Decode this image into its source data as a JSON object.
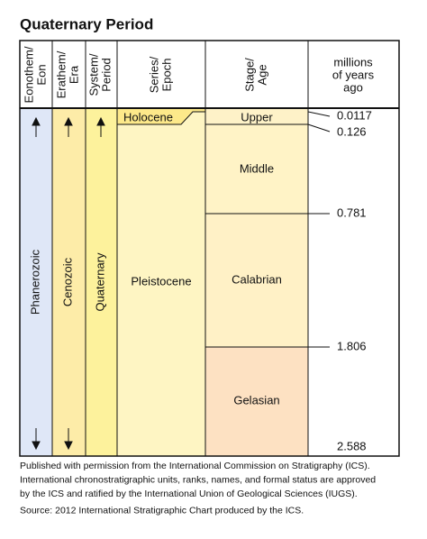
{
  "title": "Quaternary Period",
  "headers": [
    [
      "Eonothem/",
      "Eon"
    ],
    [
      "Erathem/",
      "Era"
    ],
    [
      "System/",
      "Period"
    ],
    [
      "Series/",
      "Epoch"
    ],
    [
      "Stage/",
      "Age"
    ],
    [
      "millions",
      "of years",
      "ago"
    ]
  ],
  "eon": "Phanerozoic",
  "era": "Cenozoic",
  "period": "Quaternary",
  "epochs": [
    "Holocene",
    "Pleistocene"
  ],
  "stages": [
    "Upper",
    "Middle",
    "Calabrian",
    "Gelasian"
  ],
  "ages": [
    0.0117,
    0.126,
    0.781,
    1.806,
    2.588
  ],
  "footnote": [
    "Published with permission from the International Commission on Stratigraphy (ICS).",
    "International chronostratigraphic units, ranks, names, and formal status are approved",
    "by the ICS and ratified by the International Union of Geological Sciences (IUGS).",
    "Source: 2012 International Stratigraphic Chart produced by the ICS."
  ]
}
